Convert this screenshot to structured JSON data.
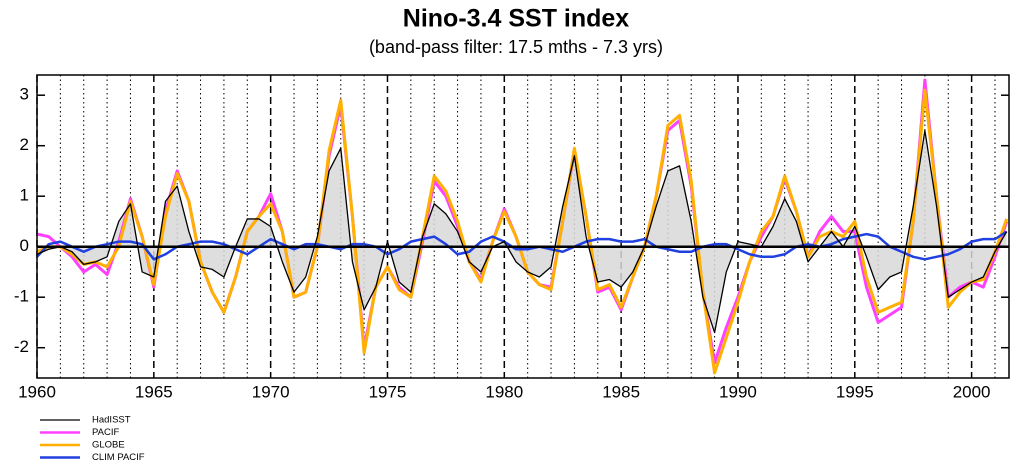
{
  "chart_data": {
    "type": "line",
    "title": "Nino-3.4 SST index",
    "subtitle": "(band-pass filter: 17.5 mths - 7.3 yrs)",
    "x": [
      1960,
      1960.5,
      1961,
      1961.5,
      1962,
      1962.5,
      1963,
      1963.5,
      1964,
      1964.5,
      1965,
      1965.5,
      1966,
      1966.5,
      1967,
      1967.5,
      1968,
      1968.5,
      1969,
      1969.5,
      1970,
      1970.5,
      1971,
      1971.5,
      1972,
      1972.5,
      1973,
      1973.5,
      1974,
      1974.5,
      1975,
      1975.5,
      1976,
      1976.5,
      1977,
      1977.5,
      1978,
      1978.5,
      1979,
      1979.5,
      1980,
      1980.5,
      1981,
      1981.5,
      1982,
      1982.5,
      1983,
      1983.5,
      1984,
      1984.5,
      1985,
      1985.5,
      1986,
      1986.5,
      1987,
      1987.5,
      1988,
      1988.5,
      1989,
      1989.5,
      1990,
      1990.5,
      1991,
      1991.5,
      1992,
      1992.5,
      1993,
      1993.5,
      1994,
      1994.5,
      1995,
      1995.5,
      1996,
      1996.5,
      1997,
      1997.5,
      1998,
      1998.5,
      1999,
      1999.5,
      2000,
      2000.5,
      2001,
      2001.5
    ],
    "series": [
      {
        "name": "HadISST",
        "color": "#000000",
        "width": 1.3,
        "fill": true,
        "values": [
          -0.15,
          -0.05,
          0.0,
          -0.1,
          -0.35,
          -0.3,
          -0.2,
          0.5,
          0.85,
          -0.5,
          -0.6,
          0.9,
          1.2,
          0.3,
          -0.4,
          -0.45,
          -0.6,
          0.0,
          0.55,
          0.55,
          0.4,
          -0.3,
          -0.9,
          -0.6,
          0.2,
          1.5,
          1.95,
          -0.3,
          -1.25,
          -0.8,
          0.1,
          -0.7,
          -0.9,
          0.2,
          0.85,
          0.65,
          0.3,
          -0.3,
          -0.5,
          0.0,
          0.1,
          -0.3,
          -0.5,
          -0.6,
          -0.4,
          0.8,
          1.8,
          0.2,
          -0.7,
          -0.65,
          -0.8,
          -0.5,
          0.0,
          0.8,
          1.5,
          1.6,
          0.5,
          -1.0,
          -1.7,
          -0.5,
          0.1,
          0.05,
          0.0,
          0.4,
          0.95,
          0.5,
          -0.3,
          0.0,
          0.3,
          0.0,
          0.4,
          -0.2,
          -0.85,
          -0.6,
          -0.5,
          0.8,
          2.3,
          0.8,
          -1.0,
          -0.85,
          -0.7,
          -0.6,
          -0.1,
          0.3
        ]
      },
      {
        "name": "PACIF",
        "color": "#ff40ff",
        "width": 3,
        "values": [
          0.25,
          0.2,
          0.0,
          -0.2,
          -0.5,
          -0.35,
          -0.55,
          0.1,
          0.95,
          0.2,
          -0.8,
          0.7,
          1.5,
          0.9,
          -0.3,
          -0.9,
          -1.3,
          -0.6,
          0.3,
          0.6,
          1.05,
          0.3,
          -1.0,
          -0.9,
          0.0,
          1.8,
          2.8,
          0.6,
          -2.0,
          -0.8,
          -0.4,
          -0.8,
          -1.0,
          0.1,
          1.3,
          1.0,
          0.4,
          -0.3,
          -0.65,
          0.1,
          0.75,
          0.2,
          -0.5,
          -0.75,
          -0.8,
          0.5,
          1.9,
          0.6,
          -0.9,
          -0.8,
          -1.25,
          -0.6,
          0.0,
          1.0,
          2.3,
          2.5,
          1.2,
          -0.9,
          -2.3,
          -1.6,
          -1.0,
          -0.3,
          0.2,
          0.6,
          1.35,
          0.7,
          -0.2,
          0.3,
          0.6,
          0.3,
          0.3,
          -0.8,
          -1.5,
          -1.35,
          -1.2,
          0.5,
          3.3,
          1.0,
          -1.0,
          -0.8,
          -0.7,
          -0.8,
          -0.2,
          0.5
        ]
      },
      {
        "name": "GLOBE",
        "color": "#ffb000",
        "width": 3,
        "values": [
          -0.1,
          0.0,
          0.0,
          -0.15,
          -0.35,
          -0.3,
          -0.4,
          0.0,
          0.9,
          0.2,
          -0.75,
          0.6,
          1.45,
          0.9,
          -0.3,
          -0.9,
          -1.3,
          -0.6,
          0.3,
          0.6,
          0.85,
          0.3,
          -1.0,
          -0.9,
          0.0,
          1.9,
          2.9,
          0.6,
          -2.1,
          -0.8,
          -0.4,
          -0.85,
          -1.0,
          0.2,
          1.4,
          1.1,
          0.5,
          -0.3,
          -0.7,
          0.1,
          0.7,
          0.2,
          -0.5,
          -0.75,
          -0.85,
          0.5,
          1.95,
          0.6,
          -0.85,
          -0.75,
          -1.2,
          -0.6,
          0.0,
          1.0,
          2.4,
          2.6,
          1.3,
          -0.9,
          -2.5,
          -1.8,
          -1.1,
          -0.3,
          0.3,
          0.6,
          1.4,
          0.7,
          -0.2,
          0.2,
          0.3,
          0.2,
          0.5,
          -0.6,
          -1.3,
          -1.2,
          -1.1,
          0.5,
          3.1,
          1.0,
          -1.2,
          -0.9,
          -0.7,
          -0.65,
          -0.1,
          0.55
        ]
      },
      {
        "name": "CLIM PACIF",
        "color": "#2040e0",
        "width": 2.5,
        "values": [
          -0.2,
          0.05,
          0.1,
          0.0,
          -0.1,
          0.0,
          0.05,
          0.1,
          0.1,
          0.05,
          -0.25,
          -0.15,
          0.0,
          0.05,
          0.1,
          0.1,
          0.05,
          -0.05,
          -0.15,
          0.0,
          0.15,
          0.05,
          -0.05,
          0.05,
          0.05,
          0.0,
          -0.05,
          0.05,
          0.05,
          0.0,
          -0.15,
          -0.05,
          0.1,
          0.15,
          0.2,
          0.05,
          -0.15,
          -0.1,
          0.1,
          0.2,
          0.1,
          -0.05,
          -0.05,
          0.0,
          -0.05,
          -0.1,
          0.0,
          0.1,
          0.15,
          0.15,
          0.1,
          0.1,
          0.15,
          0.0,
          -0.05,
          -0.1,
          -0.1,
          0.0,
          0.05,
          0.05,
          -0.05,
          -0.15,
          -0.2,
          -0.2,
          -0.15,
          0.0,
          0.05,
          0.0,
          0.05,
          0.15,
          0.2,
          0.25,
          0.2,
          0.0,
          -0.1,
          -0.2,
          -0.25,
          -0.2,
          -0.15,
          -0.05,
          0.1,
          0.15,
          0.15,
          0.3
        ]
      }
    ],
    "xlim": [
      1960,
      2001.6
    ],
    "xticks": [
      1960,
      1965,
      1970,
      1975,
      1980,
      1985,
      1990,
      1995,
      2000
    ],
    "ylim": [
      -2.6,
      3.4
    ],
    "yticks": [
      -2,
      -1,
      0,
      1,
      2,
      3
    ],
    "grid": true,
    "legend": "bottom-left"
  }
}
